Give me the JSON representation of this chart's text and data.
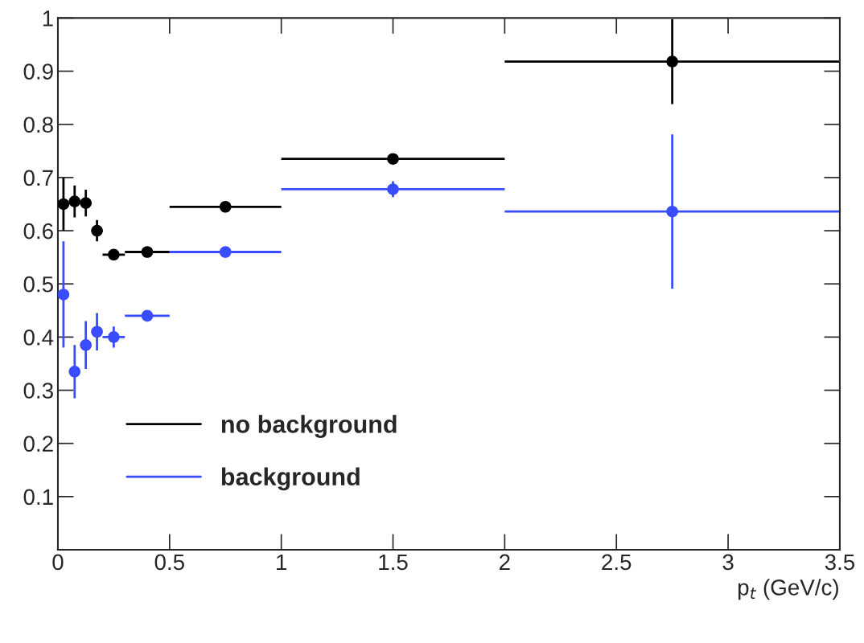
{
  "chart_data": {
    "type": "scatter",
    "xlabel": "p$_{t}$ (GeV/c)",
    "xlim": [
      0,
      3.5
    ],
    "xticks": [
      0,
      0.5,
      1,
      1.5,
      2,
      2.5,
      3,
      3.5
    ],
    "ylim": [
      0,
      1
    ],
    "yticks": [
      0.1,
      0.2,
      0.3,
      0.4,
      0.5,
      0.6,
      0.7,
      0.8,
      0.9,
      1
    ],
    "marker": "circle",
    "grid": false,
    "legend": "bottom left",
    "series": [
      {
        "name": "no background",
        "color": "#000000",
        "x": [
          0.025,
          0.075,
          0.125,
          0.175,
          0.25,
          0.4,
          0.75,
          1.5,
          2.75
        ],
        "values": [
          0.65,
          0.655,
          0.652,
          0.6,
          0.555,
          0.56,
          0.645,
          0.735,
          0.918
        ],
        "errors": [
          0.05,
          0.03,
          0.025,
          0.02,
          0.01,
          0.01,
          0.01,
          0.01,
          0.08
        ],
        "xerrors": [
          0.025,
          0.025,
          0.025,
          0.025,
          0.05,
          0.1,
          0.25,
          0.5,
          0.75
        ]
      },
      {
        "name": "background",
        "color": "#3a4cff",
        "x": [
          0.025,
          0.075,
          0.125,
          0.175,
          0.25,
          0.4,
          0.75,
          1.5,
          2.75
        ],
        "values": [
          0.48,
          0.335,
          0.385,
          0.41,
          0.4,
          0.44,
          0.56,
          0.678,
          0.636
        ],
        "errors": [
          0.1,
          0.05,
          0.045,
          0.035,
          0.02,
          0.01,
          0.01,
          0.015,
          0.145
        ],
        "xerrors": [
          0.025,
          0.025,
          0.025,
          0.025,
          0.05,
          0.1,
          0.25,
          0.5,
          0.75
        ]
      }
    ]
  }
}
